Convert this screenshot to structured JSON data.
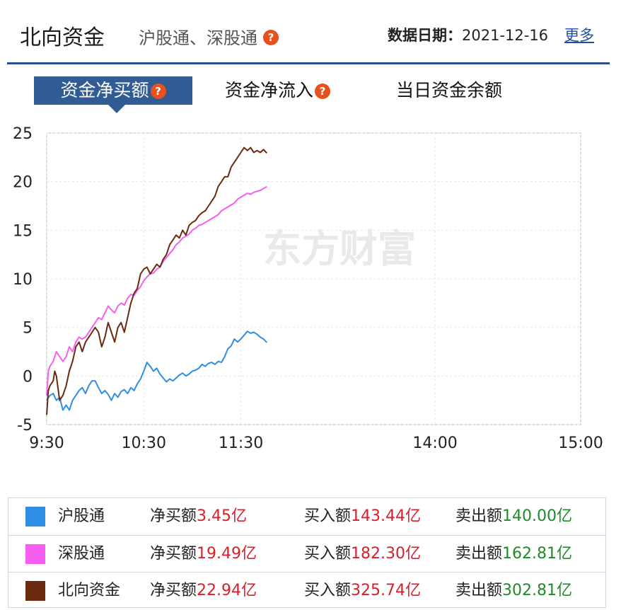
{
  "header": {
    "title": "北向资金",
    "subtitle": "沪股通、深股通",
    "date_label": "数据日期：",
    "date_value": "2021-12-16",
    "more_label": "更多"
  },
  "tabs": [
    {
      "label": "资金净买额",
      "active": true
    },
    {
      "label": "资金净流入",
      "active": false
    },
    {
      "label": "当日资金余额",
      "active": false
    }
  ],
  "watermark": "东方财富",
  "chart_data": {
    "type": "line",
    "ylim": [
      -5,
      25
    ],
    "yticks": [
      25,
      20,
      15,
      10,
      5,
      0,
      -5
    ],
    "x_ticks": [
      "9:30",
      "10:30",
      "11:30",
      "14:00",
      "15:00"
    ],
    "x_minutes": [
      0,
      60,
      120,
      240,
      330
    ],
    "grid": true,
    "series": [
      {
        "name": "沪股通",
        "color": "#2e8ee6",
        "points": [
          [
            0,
            -2.5
          ],
          [
            2,
            -2
          ],
          [
            4,
            -1.8
          ],
          [
            6,
            -2.5
          ],
          [
            8,
            -2.2
          ],
          [
            10,
            -3.5
          ],
          [
            12,
            -3
          ],
          [
            14,
            -3.5
          ],
          [
            16,
            -2.5
          ],
          [
            18,
            -2.0
          ],
          [
            20,
            -1.5
          ],
          [
            22,
            -1.2
          ],
          [
            24,
            -1.8
          ],
          [
            26,
            -1.0
          ],
          [
            28,
            -0.5
          ],
          [
            30,
            -0.5
          ],
          [
            32,
            -1.2
          ],
          [
            34,
            -1.8
          ],
          [
            36,
            -1.5
          ],
          [
            38,
            -1.9
          ],
          [
            40,
            -2.5
          ],
          [
            42,
            -1.8
          ],
          [
            44,
            -2.2
          ],
          [
            46,
            -1.6
          ],
          [
            48,
            -1.4
          ],
          [
            50,
            -1.8
          ],
          [
            52,
            -1.2
          ],
          [
            54,
            -1.5
          ],
          [
            56,
            -0.8
          ],
          [
            58,
            -0.3
          ],
          [
            60,
            0.5
          ],
          [
            62,
            1.4
          ],
          [
            64,
            1.0
          ],
          [
            66,
            0.5
          ],
          [
            68,
            0.8
          ],
          [
            70,
            0.2
          ],
          [
            72,
            -0.2
          ],
          [
            74,
            -0.6
          ],
          [
            76,
            -0.3
          ],
          [
            78,
            -0.5
          ],
          [
            80,
            -0.2
          ],
          [
            82,
            0.1
          ],
          [
            84,
            0.3
          ],
          [
            86,
            0.0
          ],
          [
            88,
            0.2
          ],
          [
            90,
            0.5
          ],
          [
            92,
            0.6
          ],
          [
            94,
            0.8
          ],
          [
            96,
            1.2
          ],
          [
            98,
            1.0
          ],
          [
            100,
            1.3
          ],
          [
            102,
            1.4
          ],
          [
            104,
            1.2
          ],
          [
            106,
            1.5
          ],
          [
            108,
            1.4
          ],
          [
            110,
            2.0
          ],
          [
            112,
            2.8
          ],
          [
            114,
            3.1
          ],
          [
            116,
            3.8
          ],
          [
            118,
            3.5
          ],
          [
            120,
            3.8
          ],
          [
            122,
            4.2
          ],
          [
            124,
            4.6
          ],
          [
            126,
            4.4
          ],
          [
            128,
            4.5
          ],
          [
            130,
            4.3
          ],
          [
            132,
            4.0
          ],
          [
            134,
            3.8
          ],
          [
            136,
            3.45
          ]
        ]
      },
      {
        "name": "深股通",
        "color": "#f55ef0",
        "points": [
          [
            0,
            -2.0
          ],
          [
            1,
            0.5
          ],
          [
            2,
            1.0
          ],
          [
            4,
            1.5
          ],
          [
            6,
            2.5
          ],
          [
            8,
            2.0
          ],
          [
            10,
            1.5
          ],
          [
            12,
            2.0
          ],
          [
            14,
            3.0
          ],
          [
            16,
            2.5
          ],
          [
            18,
            3.5
          ],
          [
            20,
            4.0
          ],
          [
            22,
            3.8
          ],
          [
            24,
            4.0
          ],
          [
            26,
            4.5
          ],
          [
            28,
            5.0
          ],
          [
            30,
            5.5
          ],
          [
            32,
            6.0
          ],
          [
            34,
            5.8
          ],
          [
            36,
            6.5
          ],
          [
            38,
            7.2
          ],
          [
            40,
            6.8
          ],
          [
            42,
            6.5
          ],
          [
            44,
            7.2
          ],
          [
            46,
            7.5
          ],
          [
            48,
            7.3
          ],
          [
            50,
            8.0
          ],
          [
            52,
            8.4
          ],
          [
            54,
            8.3
          ],
          [
            56,
            8.8
          ],
          [
            58,
            9.2
          ],
          [
            60,
            9.8
          ],
          [
            62,
            10.2
          ],
          [
            64,
            10.5
          ],
          [
            66,
            10.6
          ],
          [
            68,
            11.0
          ],
          [
            70,
            11.2
          ],
          [
            72,
            11.8
          ],
          [
            74,
            12.2
          ],
          [
            76,
            12.6
          ],
          [
            78,
            13.0
          ],
          [
            80,
            13.5
          ],
          [
            82,
            13.8
          ],
          [
            84,
            14.2
          ],
          [
            86,
            14.4
          ],
          [
            88,
            14.6
          ],
          [
            90,
            15.0
          ],
          [
            92,
            15.2
          ],
          [
            94,
            15.5
          ],
          [
            96,
            15.6
          ],
          [
            98,
            15.8
          ],
          [
            100,
            16.0
          ],
          [
            102,
            16.2
          ],
          [
            104,
            16.4
          ],
          [
            106,
            16.6
          ],
          [
            108,
            17.0
          ],
          [
            110,
            17.2
          ],
          [
            112,
            17.4
          ],
          [
            114,
            17.6
          ],
          [
            116,
            17.8
          ],
          [
            118,
            18.2
          ],
          [
            120,
            18.4
          ],
          [
            122,
            18.6
          ],
          [
            124,
            18.8
          ],
          [
            126,
            18.7
          ],
          [
            128,
            18.9
          ],
          [
            130,
            19.0
          ],
          [
            132,
            19.1
          ],
          [
            134,
            19.3
          ],
          [
            136,
            19.49
          ]
        ]
      },
      {
        "name": "北向资金",
        "color": "#6b2a10",
        "points": [
          [
            0,
            -4.0
          ],
          [
            1,
            -1.5
          ],
          [
            2,
            -1.0
          ],
          [
            4,
            -0.5
          ],
          [
            5,
            0.5
          ],
          [
            6,
            0.0
          ],
          [
            8,
            -2.5
          ],
          [
            10,
            -2.0
          ],
          [
            12,
            -1.0
          ],
          [
            14,
            0.5
          ],
          [
            16,
            1.5
          ],
          [
            18,
            3.0
          ],
          [
            20,
            3.5
          ],
          [
            22,
            2.5
          ],
          [
            24,
            3.5
          ],
          [
            26,
            4.0
          ],
          [
            28,
            4.5
          ],
          [
            30,
            5.0
          ],
          [
            32,
            4.5
          ],
          [
            34,
            3.0
          ],
          [
            36,
            4.0
          ],
          [
            38,
            5.5
          ],
          [
            40,
            4.5
          ],
          [
            42,
            3.5
          ],
          [
            44,
            5.0
          ],
          [
            46,
            5.5
          ],
          [
            48,
            4.5
          ],
          [
            50,
            6.0
          ],
          [
            52,
            7.5
          ],
          [
            54,
            8.5
          ],
          [
            56,
            9.0
          ],
          [
            58,
            10.5
          ],
          [
            60,
            11.0
          ],
          [
            62,
            11.2
          ],
          [
            64,
            10.5
          ],
          [
            66,
            11.0
          ],
          [
            68,
            11.5
          ],
          [
            70,
            11.2
          ],
          [
            72,
            12.0
          ],
          [
            74,
            12.5
          ],
          [
            76,
            13.5
          ],
          [
            78,
            14.0
          ],
          [
            80,
            14.5
          ],
          [
            82,
            14.2
          ],
          [
            84,
            15.0
          ],
          [
            86,
            14.5
          ],
          [
            88,
            15.5
          ],
          [
            90,
            15.8
          ],
          [
            92,
            16.0
          ],
          [
            94,
            16.5
          ],
          [
            96,
            16.8
          ],
          [
            98,
            17.0
          ],
          [
            100,
            17.5
          ],
          [
            102,
            18.0
          ],
          [
            104,
            18.5
          ],
          [
            106,
            19.5
          ],
          [
            108,
            20.0
          ],
          [
            110,
            20.5
          ],
          [
            112,
            20.5
          ],
          [
            114,
            21.5
          ],
          [
            116,
            22.0
          ],
          [
            118,
            22.5
          ],
          [
            120,
            23.0
          ],
          [
            122,
            23.5
          ],
          [
            124,
            23.2
          ],
          [
            126,
            23.5
          ],
          [
            128,
            23.0
          ],
          [
            130,
            23.2
          ],
          [
            132,
            23.0
          ],
          [
            134,
            23.3
          ],
          [
            136,
            22.94
          ]
        ]
      }
    ]
  },
  "legend_rows": [
    {
      "name": "沪股通",
      "net_label": "净买额",
      "net_value": "3.45亿",
      "buy_label": "买入额",
      "buy_value": "143.44亿",
      "sell_label": "卖出额",
      "sell_value": "140.00亿"
    },
    {
      "name": "深股通",
      "net_label": "净买额",
      "net_value": "19.49亿",
      "buy_label": "买入额",
      "buy_value": "182.30亿",
      "sell_label": "卖出额",
      "sell_value": "162.81亿"
    },
    {
      "name": "北向资金",
      "net_label": "净买额",
      "net_value": "22.94亿",
      "buy_label": "买入额",
      "buy_value": "325.74亿",
      "sell_label": "卖出额",
      "sell_value": "302.81亿"
    }
  ],
  "colors": {
    "accent": "#315c93",
    "header_line": "#2a4f8e",
    "help_icon": "#e8501e",
    "buy_red": "#d7202a",
    "sell_green": "#1f8a2a"
  }
}
